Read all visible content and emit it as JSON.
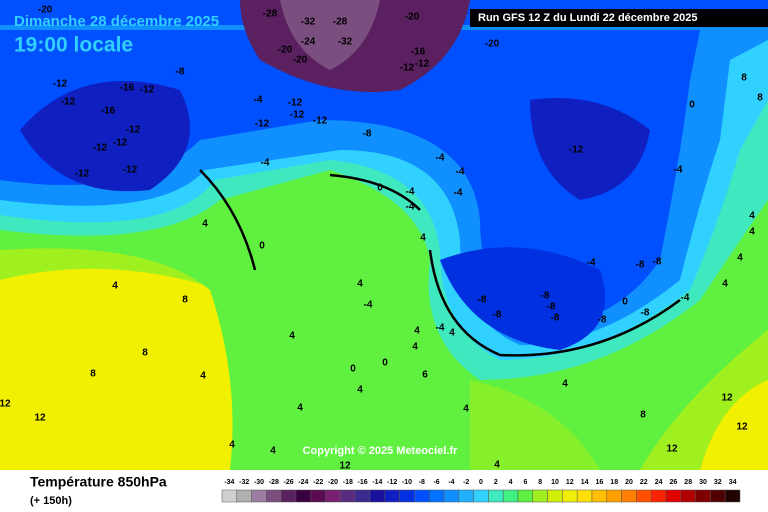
{
  "header": {
    "date": "Dimanche 28 décembre 2025",
    "time": "19:00 locale",
    "run": "Run GFS 12 Z du Lundi 22 décembre 2025"
  },
  "map": {
    "labels": [
      -20,
      -28,
      -32,
      -28,
      -20,
      -24,
      -32,
      -20,
      -20,
      -16,
      -12,
      -12,
      -20,
      -8,
      -12,
      -12,
      -16,
      -12,
      -12,
      -4,
      -16,
      -12,
      -12,
      -12,
      -12,
      -12,
      -12,
      -8,
      -12,
      -4,
      -12,
      -12,
      -4,
      -4,
      0,
      -4,
      -4,
      -4,
      -4,
      0,
      8,
      8,
      4,
      0,
      4,
      4,
      4,
      -4,
      -8,
      -8,
      -4,
      4,
      -8,
      -8,
      -8,
      0,
      -8,
      4,
      4,
      8,
      4,
      -4,
      -8,
      -8,
      -8,
      -4,
      4,
      12,
      12,
      12,
      12,
      12,
      4,
      4,
      4,
      4,
      12,
      8,
      8,
      4,
      4,
      8,
      0,
      0,
      6,
      4,
      4,
      4,
      4,
      4
    ],
    "copyright": "Copyright © 2025 Meteociel.fr"
  },
  "legend": {
    "title": "Température 850hPa",
    "subtitle": "(+ 150h)",
    "values": [
      -34,
      -32,
      -30,
      -28,
      -26,
      -24,
      -22,
      -20,
      -18,
      -16,
      -14,
      -12,
      -10,
      -8,
      -6,
      -4,
      -2,
      0,
      2,
      4,
      6,
      8,
      10,
      12,
      14,
      16,
      18,
      20,
      22,
      24,
      26,
      28,
      30,
      32,
      34
    ],
    "colors": [
      "#d0d0d0",
      "#b0b0b0",
      "#9a7fa0",
      "#7a4f80",
      "#5a2060",
      "#3a0040",
      "#5a0a50",
      "#7a2070",
      "#5a2a80",
      "#3a2a90",
      "#1a10a0",
      "#1020c0",
      "#0030e0",
      "#0050ff",
      "#0070ff",
      "#1090ff",
      "#20b0ff",
      "#30d0ff",
      "#40e8c0",
      "#40f080",
      "#60f040",
      "#a0f020",
      "#d0f000",
      "#f0f000",
      "#ffe000",
      "#ffc000",
      "#ffa000",
      "#ff8000",
      "#ff5000",
      "#ff2000",
      "#e00000",
      "#b00000",
      "#800000",
      "#500000",
      "#200000"
    ]
  }
}
